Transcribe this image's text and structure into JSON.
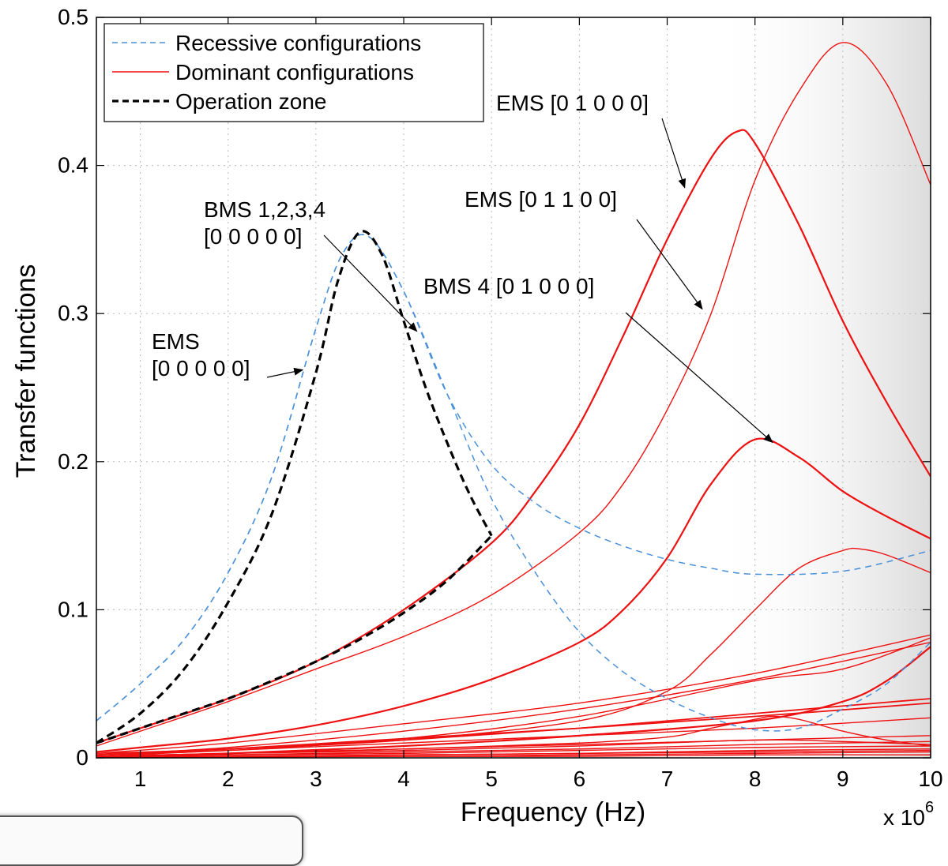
{
  "chart_data": {
    "type": "line",
    "xlabel": "Frequency (Hz)",
    "ylabel": "Transfer functions",
    "x_multiplier": "x 10",
    "x_multiplier_exp": "6",
    "xlim": [
      0.5,
      10
    ],
    "ylim": [
      0,
      0.5
    ],
    "xticks": [
      1,
      2,
      3,
      4,
      5,
      6,
      7,
      8,
      9,
      10
    ],
    "yticks": [
      0,
      0.1,
      0.2,
      0.3,
      0.4,
      0.5
    ],
    "xtick_labels": [
      "1",
      "2",
      "3",
      "4",
      "5",
      "6",
      "7",
      "8",
      "9",
      "10"
    ],
    "ytick_labels": [
      "0",
      "0.1",
      "0.2",
      "0.3",
      "0.4",
      "0.5"
    ],
    "grid": true,
    "legend_position": "top-left",
    "legend": [
      {
        "label": "Recessive configurations",
        "color": "#4a90d9",
        "style": "dashed"
      },
      {
        "label": "Dominant configurations",
        "color": "#ee1111",
        "style": "solid"
      },
      {
        "label": "Operation zone",
        "color": "#000000",
        "style": "dashed"
      }
    ],
    "annotations": [
      {
        "lines": [
          "EMS [0 1 0 0 0]"
        ],
        "target": [
          7.2,
          0.385
        ]
      },
      {
        "lines": [
          "EMS [0 1 1 0 0]"
        ],
        "target": [
          7.4,
          0.303
        ]
      },
      {
        "lines": [
          "BMS 1,2,3,4",
          "[0 0 0 0 0]"
        ],
        "target": [
          4.15,
          0.288
        ]
      },
      {
        "lines": [
          "BMS 4 [0 1 0 0 0]"
        ],
        "target": [
          8.2,
          0.213
        ]
      },
      {
        "lines": [
          "EMS",
          "[0 0 0 0 0]"
        ],
        "target": [
          2.85,
          0.262
        ]
      }
    ],
    "series": [
      {
        "group": "recessive",
        "color": "#4a90d9",
        "dash": "dashed",
        "width": 1.5,
        "x": [
          0.5,
          1,
          1.5,
          2,
          2.5,
          3,
          3.3,
          3.6,
          4,
          4.5,
          5,
          5.5,
          6,
          6.5,
          7,
          7.5,
          8,
          9,
          10
        ],
        "y": [
          0.025,
          0.05,
          0.08,
          0.125,
          0.19,
          0.29,
          0.34,
          0.352,
          0.315,
          0.245,
          0.198,
          0.172,
          0.155,
          0.143,
          0.134,
          0.128,
          0.124,
          0.126,
          0.14
        ]
      },
      {
        "group": "recessive",
        "color": "#4a90d9",
        "dash": "dashed",
        "width": 1.5,
        "x": [
          0.5,
          1,
          1.5,
          2,
          2.5,
          3,
          3.3,
          3.6,
          4,
          4.5,
          5,
          5.5,
          6,
          6.5,
          7,
          7.5,
          8,
          8.5,
          9,
          9.5,
          10
        ],
        "y": [
          0.025,
          0.05,
          0.08,
          0.125,
          0.19,
          0.29,
          0.34,
          0.352,
          0.315,
          0.245,
          0.175,
          0.125,
          0.085,
          0.058,
          0.04,
          0.027,
          0.019,
          0.02,
          0.033,
          0.05,
          0.078
        ]
      },
      {
        "group": "dominant",
        "color": "#ee1111",
        "dash": "solid",
        "width": 2.2,
        "x": [
          0.5,
          1,
          2,
          3,
          4,
          5,
          5.5,
          6,
          6.5,
          7,
          7.5,
          7.8,
          8,
          8.5,
          9,
          9.5,
          10
        ],
        "y": [
          0.01,
          0.02,
          0.04,
          0.065,
          0.1,
          0.145,
          0.18,
          0.225,
          0.285,
          0.35,
          0.405,
          0.423,
          0.415,
          0.36,
          0.295,
          0.24,
          0.19
        ]
      },
      {
        "group": "dominant",
        "color": "#ee1111",
        "dash": "solid",
        "width": 1.4,
        "x": [
          0.5,
          1,
          2,
          3,
          4,
          5,
          6,
          6.5,
          7,
          7.5,
          8,
          8.5,
          9,
          9.5,
          10
        ],
        "y": [
          0.008,
          0.018,
          0.038,
          0.06,
          0.082,
          0.11,
          0.152,
          0.185,
          0.235,
          0.3,
          0.39,
          0.45,
          0.483,
          0.455,
          0.387
        ]
      },
      {
        "group": "dominant",
        "color": "#ee1111",
        "dash": "solid",
        "width": 2.2,
        "x": [
          0.5,
          1,
          2,
          3,
          4,
          5,
          6,
          6.5,
          7,
          7.5,
          8,
          8.5,
          9,
          9.5,
          10
        ],
        "y": [
          0.004,
          0.007,
          0.013,
          0.022,
          0.035,
          0.053,
          0.078,
          0.1,
          0.135,
          0.185,
          0.215,
          0.203,
          0.18,
          0.163,
          0.148
        ]
      },
      {
        "group": "dominant",
        "color": "#ee1111",
        "dash": "solid",
        "width": 1.4,
        "x": [
          0.5,
          2,
          4,
          6,
          7,
          7.5,
          8,
          8.5,
          9,
          9.2,
          9.5,
          10
        ],
        "y": [
          0.003,
          0.006,
          0.012,
          0.025,
          0.045,
          0.07,
          0.1,
          0.128,
          0.14,
          0.141,
          0.137,
          0.125
        ]
      },
      {
        "group": "dominant",
        "color": "#ee1111",
        "dash": "solid",
        "width": 1.4,
        "x": [
          0.5,
          2,
          4,
          6,
          8,
          10
        ],
        "y": [
          0.003,
          0.01,
          0.023,
          0.037,
          0.057,
          0.083
        ]
      },
      {
        "group": "dominant",
        "color": "#ee1111",
        "dash": "solid",
        "width": 1.4,
        "x": [
          0.5,
          2,
          4,
          6,
          8,
          10
        ],
        "y": [
          0.002,
          0.007,
          0.018,
          0.033,
          0.053,
          0.078
        ]
      },
      {
        "group": "dominant",
        "color": "#ee1111",
        "dash": "solid",
        "width": 1.4,
        "x": [
          0.5,
          2,
          4,
          6,
          8,
          9,
          10
        ],
        "y": [
          0.002,
          0.005,
          0.013,
          0.028,
          0.052,
          0.06,
          0.081
        ]
      },
      {
        "group": "dominant",
        "color": "#ee1111",
        "dash": "solid",
        "width": 2.2,
        "x": [
          0.5,
          2,
          4,
          6,
          8,
          9,
          9.5,
          10
        ],
        "y": [
          0.001,
          0.003,
          0.008,
          0.015,
          0.025,
          0.038,
          0.052,
          0.075
        ]
      },
      {
        "group": "dominant",
        "color": "#ee1111",
        "dash": "solid",
        "width": 1.8,
        "x": [
          0.5,
          2,
          4,
          6,
          8,
          10
        ],
        "y": [
          0.002,
          0.006,
          0.012,
          0.02,
          0.03,
          0.04
        ]
      },
      {
        "group": "dominant",
        "color": "#ee1111",
        "dash": "solid",
        "width": 1.8,
        "x": [
          0.5,
          2,
          4,
          6,
          8,
          10
        ],
        "y": [
          0.002,
          0.006,
          0.013,
          0.02,
          0.028,
          0.037
        ]
      },
      {
        "group": "dominant",
        "color": "#ee1111",
        "dash": "solid",
        "width": 1.4,
        "x": [
          0.5,
          2,
          4,
          6,
          8,
          10
        ],
        "y": [
          0.001,
          0.005,
          0.01,
          0.015,
          0.02,
          0.027
        ]
      },
      {
        "group": "dominant",
        "color": "#ee1111",
        "dash": "solid",
        "width": 1.4,
        "x": [
          0.5,
          2,
          4,
          6,
          7,
          7.5,
          8,
          8.2,
          8.5,
          9,
          9.5,
          10
        ],
        "y": [
          0.001,
          0.003,
          0.006,
          0.01,
          0.014,
          0.02,
          0.026,
          0.028,
          0.026,
          0.018,
          0.012,
          0.008
        ]
      },
      {
        "group": "dominant",
        "color": "#ee1111",
        "dash": "solid",
        "width": 1.4,
        "x": [
          0.5,
          2,
          4,
          6,
          8,
          10
        ],
        "y": [
          0.001,
          0.003,
          0.006,
          0.009,
          0.012,
          0.015
        ]
      },
      {
        "group": "dominant",
        "color": "#ee1111",
        "dash": "solid",
        "width": 1.4,
        "x": [
          0.5,
          2,
          4,
          6,
          8,
          9,
          10
        ],
        "y": [
          0.001,
          0.003,
          0.005,
          0.008,
          0.012,
          0.011,
          0.009
        ]
      },
      {
        "group": "dominant",
        "color": "#ee1111",
        "dash": "solid",
        "width": 1.4,
        "x": [
          0.5,
          2,
          4,
          6,
          8,
          10
        ],
        "y": [
          0.001,
          0.002,
          0.004,
          0.006,
          0.009,
          0.011
        ]
      },
      {
        "group": "dominant",
        "color": "#ee1111",
        "dash": "solid",
        "width": 1.4,
        "x": [
          0.5,
          2,
          4,
          6,
          8,
          10
        ],
        "y": [
          0.001,
          0.002,
          0.003,
          0.005,
          0.007,
          0.008
        ]
      },
      {
        "group": "dominant",
        "color": "#ee1111",
        "dash": "solid",
        "width": 1.4,
        "x": [
          0.5,
          2,
          4,
          6,
          8,
          10
        ],
        "y": [
          0.001,
          0.001,
          0.002,
          0.003,
          0.005,
          0.006
        ]
      },
      {
        "group": "dominant",
        "color": "#ee1111",
        "dash": "solid",
        "width": 1.4,
        "x": [
          0.5,
          2,
          4,
          6,
          8,
          10
        ],
        "y": [
          0.0005,
          0.001,
          0.002,
          0.003,
          0.004,
          0.005
        ]
      },
      {
        "group": "dominant",
        "color": "#ee1111",
        "dash": "solid",
        "width": 1.4,
        "x": [
          0.5,
          2,
          4,
          6,
          8,
          10
        ],
        "y": [
          0.0005,
          0.001,
          0.001,
          0.002,
          0.003,
          0.004
        ]
      },
      {
        "group": "dominant",
        "color": "#ee1111",
        "dash": "solid",
        "width": 1.4,
        "x": [
          0.5,
          2,
          4,
          6,
          8,
          10
        ],
        "y": [
          0.0003,
          0.0005,
          0.001,
          0.001,
          0.002,
          0.002
        ]
      },
      {
        "group": "operation",
        "color": "#000000",
        "dash": "dashed",
        "width": 3.2,
        "x": [
          0.5,
          1,
          1.5,
          2,
          2.5,
          3,
          3.25,
          3.5,
          3.75,
          4,
          4.25,
          4.5,
          4.75,
          5
        ],
        "y": [
          0.01,
          0.03,
          0.06,
          0.105,
          0.165,
          0.26,
          0.322,
          0.355,
          0.34,
          0.295,
          0.25,
          0.212,
          0.178,
          0.15
        ]
      },
      {
        "group": "operation",
        "color": "#000000",
        "dash": "dashed",
        "width": 3.2,
        "x": [
          0.5,
          1,
          1.5,
          2,
          2.5,
          3,
          3.5,
          4,
          4.5,
          5
        ],
        "y": [
          0.01,
          0.02,
          0.03,
          0.04,
          0.052,
          0.065,
          0.08,
          0.098,
          0.12,
          0.15
        ]
      }
    ]
  }
}
